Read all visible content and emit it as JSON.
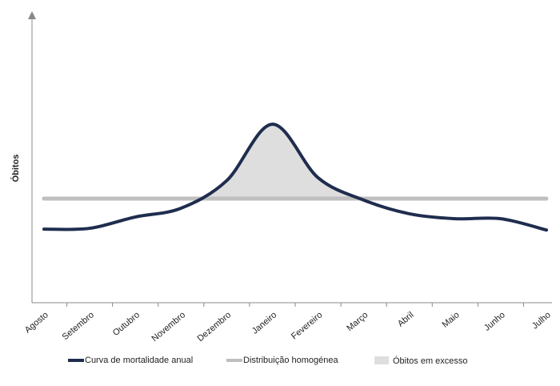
{
  "chart_data": {
    "type": "line",
    "y_label": "Óbitos",
    "categories": [
      "Agosto",
      "Setembro",
      "Outubro",
      "Novembro",
      "Dezembro",
      "Janeiro",
      "Fevereiro",
      "Março",
      "Abril",
      "Maio",
      "Junho",
      "Julho"
    ],
    "series": [
      {
        "name": "Curva de mortalidade anual",
        "color": "#1f2d4e",
        "values": [
          25.3,
          25.6,
          29.5,
          32.5,
          42,
          61.4,
          43,
          35.3,
          30.6,
          28.9,
          28.9,
          25
        ]
      },
      {
        "name": "Distribuição homogénea",
        "color": "#bfbfbf",
        "values": [
          35.8,
          35.8,
          35.8,
          35.8,
          35.8,
          35.8,
          35.8,
          35.8,
          35.8,
          35.8,
          35.8,
          35.8
        ]
      }
    ],
    "shaded_area": {
      "name": "Óbitos em excesso",
      "color": "#dedede"
    },
    "ylim": [
      0,
      100
    ]
  }
}
